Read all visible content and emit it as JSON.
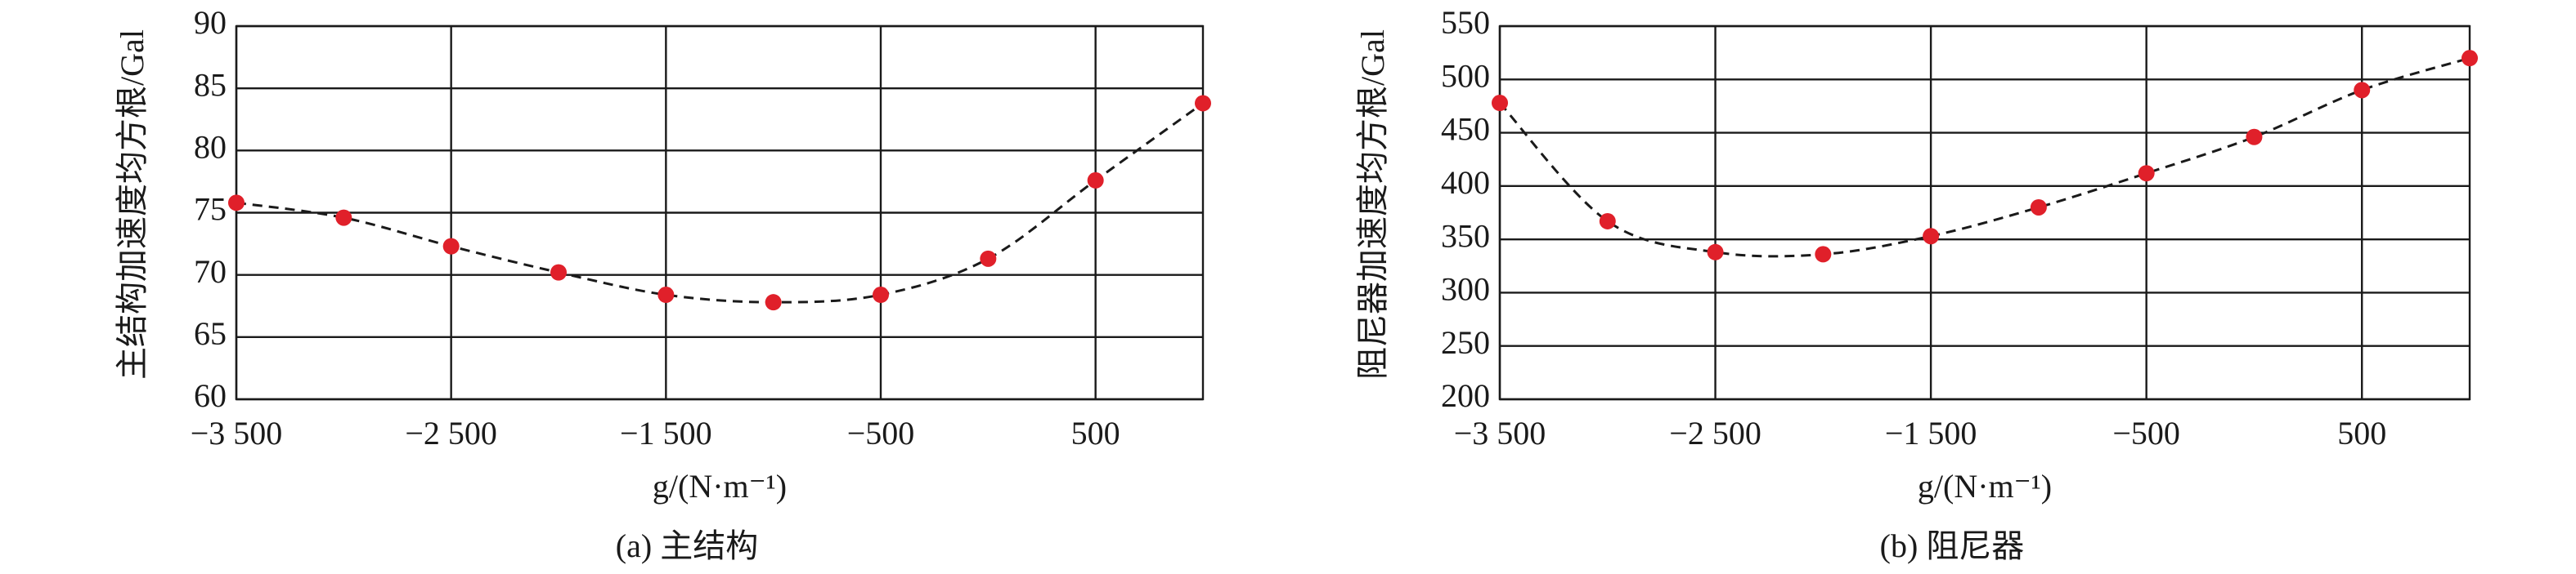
{
  "chart_data": [
    {
      "type": "scatter",
      "x": [
        -3500,
        -3000,
        -2500,
        -2000,
        -1500,
        -1000,
        -500,
        0,
        500,
        1000
      ],
      "series": [
        {
          "color": "#e0202a",
          "values": [
            75.8,
            74.6,
            72.3,
            70.2,
            68.4,
            67.8,
            68.4,
            71.3,
            77.6,
            83.8
          ]
        }
      ],
      "xlim": [
        -3500,
        1000
      ],
      "xticks": [
        {
          "value": -3500,
          "label": "−3 500"
        },
        {
          "value": -2500,
          "label": "−2 500"
        },
        {
          "value": -1500,
          "label": "−1 500"
        },
        {
          "value": -500,
          "label": "−500"
        },
        500
      ],
      "ylim": [
        60,
        90
      ],
      "yticks": [
        60,
        65,
        70,
        75,
        80,
        85,
        90
      ],
      "xlabel": "g/(N·m⁻¹)",
      "ylabel": "主结构加速度均方根/Gal",
      "caption": "(a) 主结构",
      "grid": true
    },
    {
      "type": "scatter",
      "x": [
        -3500,
        -3000,
        -2500,
        -2000,
        -1500,
        -1000,
        -500,
        0,
        500,
        1000
      ],
      "series": [
        {
          "color": "#e0202a",
          "values": [
            478,
            367,
            338,
            336,
            353,
            380,
            412,
            446,
            490,
            520
          ]
        }
      ],
      "xlim": [
        -3500,
        1000
      ],
      "xticks": [
        {
          "value": -3500,
          "label": "−3 500"
        },
        {
          "value": -2500,
          "label": "−2 500"
        },
        {
          "value": -1500,
          "label": "−1 500"
        },
        {
          "value": -500,
          "label": "−500"
        },
        500
      ],
      "ylim": [
        200,
        550
      ],
      "yticks": [
        200,
        250,
        300,
        350,
        400,
        450,
        500,
        550
      ],
      "xlabel": "g/(N·m⁻¹)",
      "ylabel": "阻尼器加速度均方根/Gal",
      "caption": "(b) 阻尼器",
      "grid": true
    }
  ]
}
